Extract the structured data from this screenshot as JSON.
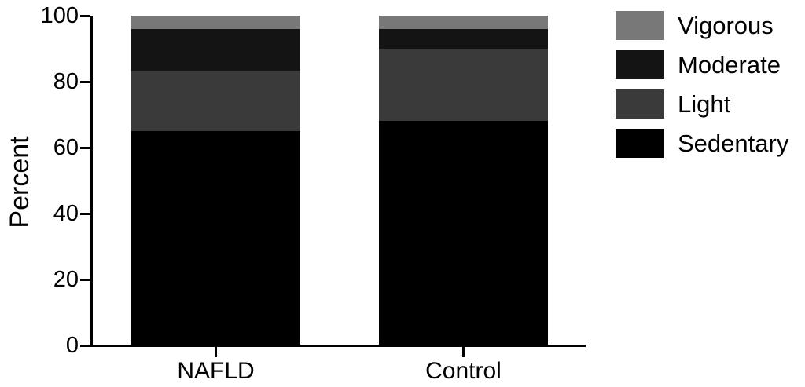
{
  "figure": {
    "background_color": "#ffffff",
    "axis_color": "#000000",
    "text_color": "#000000"
  },
  "chart_data": {
    "type": "bar",
    "stacked": true,
    "title": "",
    "xlabel": "",
    "ylabel": "Percent",
    "ylim": [
      0,
      100
    ],
    "yticks": [
      0,
      20,
      40,
      60,
      80,
      100
    ],
    "grid": false,
    "categories": [
      "NAFLD",
      "Control"
    ],
    "series": [
      {
        "name": "Sedentary",
        "color": "#000000",
        "values": [
          65,
          68
        ]
      },
      {
        "name": "Light",
        "color": "#3a3a3a",
        "values": [
          18,
          22
        ]
      },
      {
        "name": "Moderate",
        "color": "#141414",
        "values": [
          13,
          6
        ]
      },
      {
        "name": "Vigorous",
        "color": "#787878",
        "values": [
          4,
          4
        ]
      }
    ],
    "legend": {
      "position": "top-right",
      "order_top_to_bottom": [
        "Vigorous",
        "Moderate",
        "Light",
        "Sedentary"
      ]
    }
  }
}
